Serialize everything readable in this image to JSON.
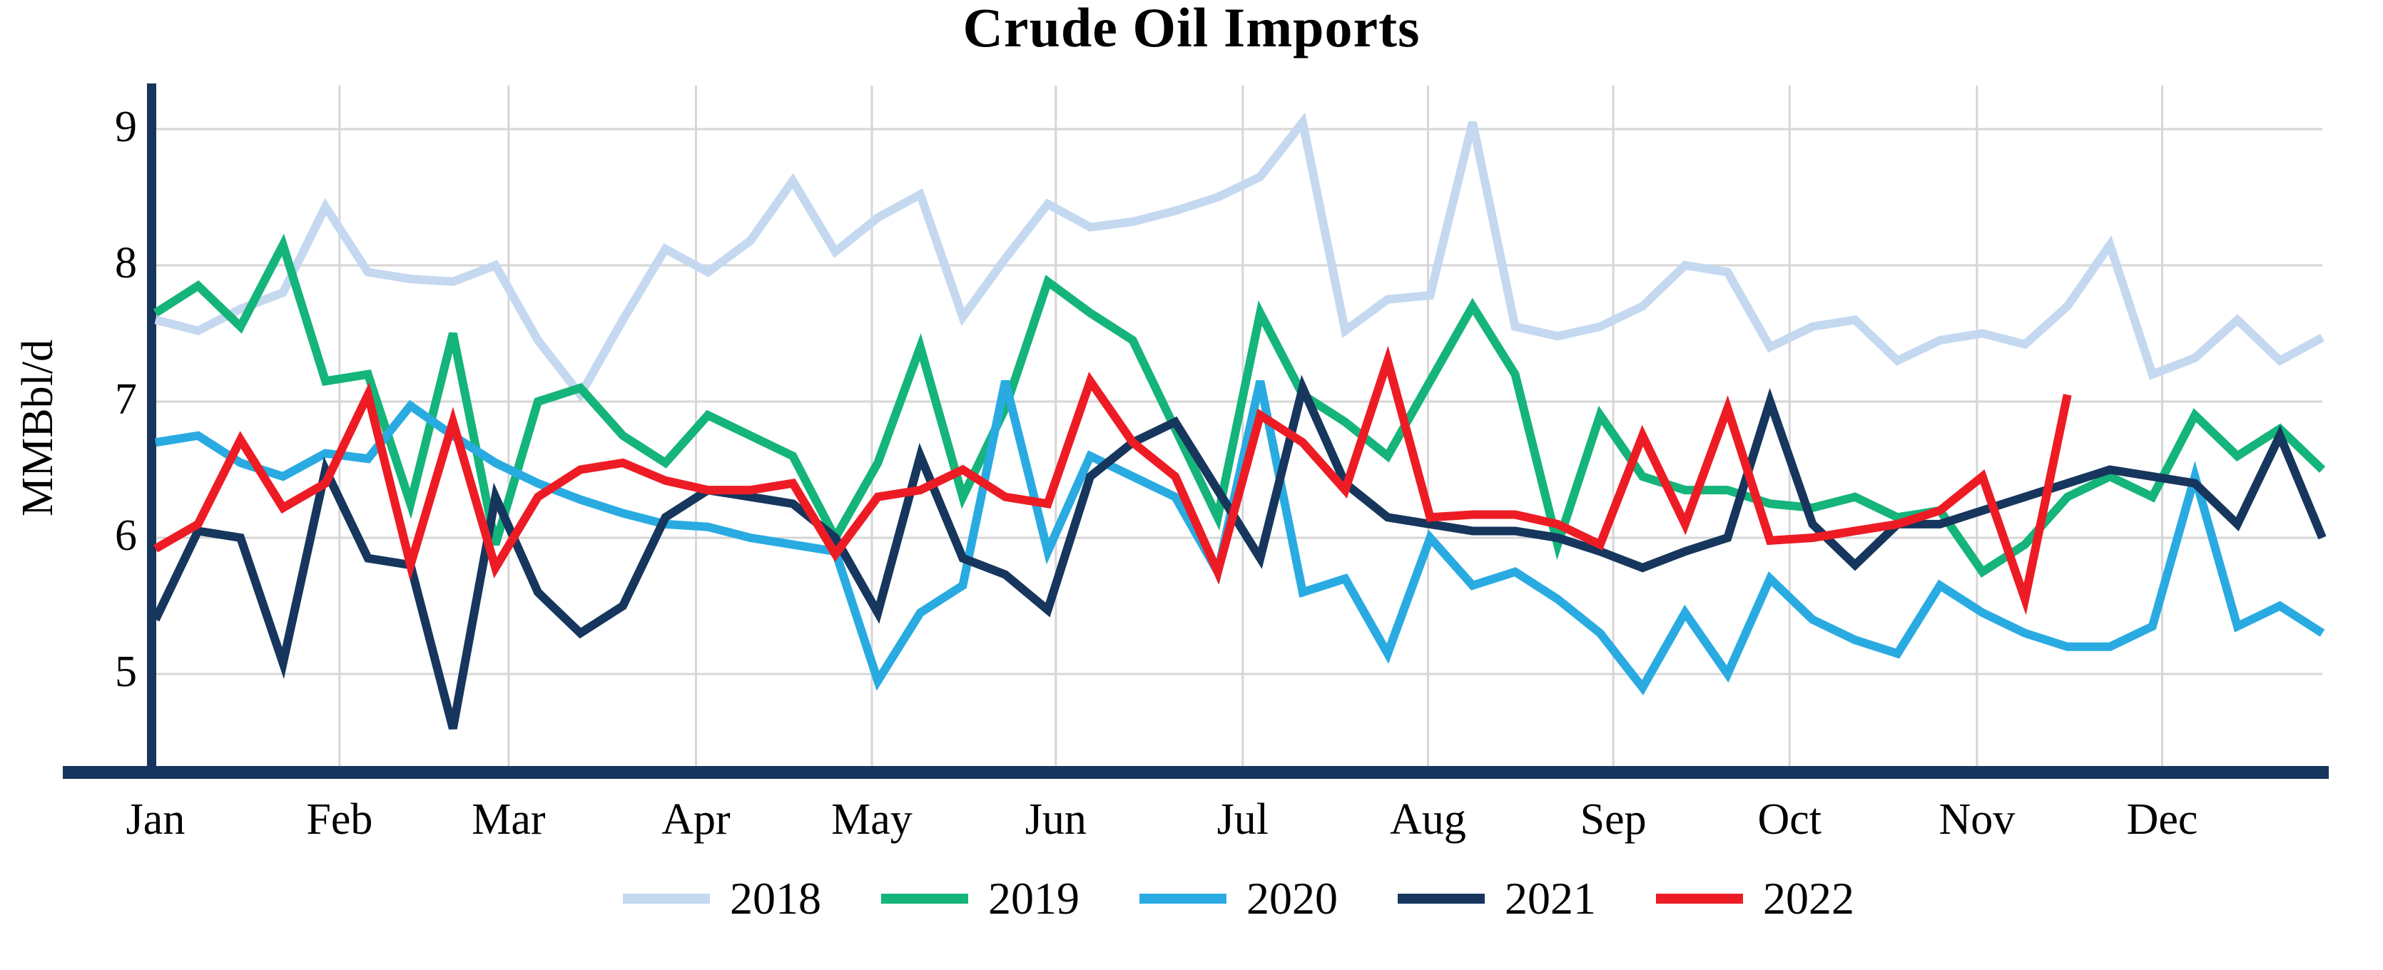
{
  "title": "Crude Oil Imports",
  "y_axis": {
    "label": "MMBbl/d",
    "ticks": [
      "9",
      "8",
      "7",
      "6",
      "5"
    ]
  },
  "x_axis": {
    "months": [
      "Jan",
      "Feb",
      "Mar",
      "Apr",
      "May",
      "Jun",
      "Jul",
      "Aug",
      "Sep",
      "Oct",
      "Nov",
      "Dec"
    ]
  },
  "legend_entries": [
    "2018",
    "2019",
    "2020",
    "2021",
    "2022"
  ],
  "colors": {
    "series_2018": "#c4d8f0",
    "series_2019": "#14b47a",
    "series_2020": "#29abe2",
    "series_2021": "#17365d",
    "series_2022": "#ed1c24",
    "axis_bar": "#17365d",
    "gridline": "#d6d6d6",
    "text": "#000000"
  },
  "chart_data": {
    "type": "line",
    "title": "Crude Oil Imports",
    "xlabel": "",
    "ylabel": "MMBbl/d",
    "x_unit": "week_of_year",
    "x_range_weeks": [
      0,
      51
    ],
    "ylim": [
      4.3,
      9.32
    ],
    "yticks": [
      5,
      6,
      7,
      8,
      9
    ],
    "grid": "both",
    "legend_position": "bottom",
    "month_labels": [
      "Jan",
      "Feb",
      "Mar",
      "Apr",
      "May",
      "Jun",
      "Jul",
      "Aug",
      "Sep",
      "Oct",
      "Nov",
      "Dec"
    ],
    "month_week_positions": [
      0,
      4.33,
      8.31,
      12.72,
      16.86,
      21.19,
      25.59,
      29.95,
      34.31,
      38.46,
      42.87,
      47.23
    ],
    "series": [
      {
        "name": "2018",
        "color": "#c4d8f0",
        "values": [
          7.6,
          7.52,
          7.68,
          7.8,
          8.43,
          7.95,
          7.9,
          7.88,
          8.0,
          7.45,
          7.05,
          7.6,
          8.12,
          7.95,
          8.18,
          8.62,
          8.1,
          8.35,
          8.52,
          7.62,
          8.05,
          8.45,
          8.28,
          8.32,
          8.4,
          8.5,
          8.65,
          9.05,
          7.52,
          7.75,
          7.78,
          9.05,
          7.55,
          7.48,
          7.55,
          7.7,
          8.0,
          7.95,
          7.4,
          7.55,
          7.6,
          7.3,
          7.45,
          7.5,
          7.42,
          7.7,
          8.15,
          7.2,
          7.32,
          7.6,
          7.3,
          7.47
        ]
      },
      {
        "name": "2019",
        "color": "#14b47a",
        "values": [
          7.65,
          7.85,
          7.55,
          8.15,
          7.15,
          7.2,
          6.25,
          7.5,
          5.95,
          7.0,
          7.1,
          6.75,
          6.55,
          6.9,
          6.75,
          6.6,
          6.0,
          6.55,
          7.4,
          6.3,
          6.95,
          7.88,
          7.65,
          7.45,
          6.8,
          6.15,
          7.65,
          7.05,
          6.85,
          6.6,
          7.15,
          7.7,
          7.2,
          5.95,
          6.9,
          6.45,
          6.35,
          6.35,
          6.25,
          6.22,
          6.3,
          6.15,
          6.2,
          5.75,
          5.95,
          6.3,
          6.45,
          6.3,
          6.9,
          6.6,
          6.8,
          6.5
        ]
      },
      {
        "name": "2020",
        "color": "#29abe2",
        "values": [
          6.7,
          6.75,
          6.55,
          6.45,
          6.62,
          6.58,
          6.97,
          6.75,
          6.55,
          6.4,
          6.28,
          6.18,
          6.1,
          6.08,
          6.0,
          5.95,
          5.9,
          4.95,
          5.45,
          5.65,
          7.15,
          5.9,
          6.6,
          6.45,
          6.3,
          5.75,
          7.15,
          5.6,
          5.7,
          5.15,
          6.0,
          5.65,
          5.75,
          5.55,
          5.3,
          4.9,
          5.45,
          5.0,
          5.7,
          5.4,
          5.25,
          5.15,
          5.65,
          5.45,
          5.3,
          5.2,
          5.2,
          5.35,
          6.45,
          5.35,
          5.5,
          5.3
        ]
      },
      {
        "name": "2021",
        "color": "#17365d",
        "values": [
          5.4,
          6.05,
          6.0,
          5.08,
          6.5,
          5.85,
          5.8,
          4.6,
          6.3,
          5.6,
          5.3,
          5.5,
          6.15,
          6.35,
          6.3,
          6.25,
          6.0,
          5.45,
          6.6,
          5.85,
          5.73,
          5.47,
          6.45,
          6.7,
          6.85,
          6.35,
          5.85,
          7.1,
          6.4,
          6.15,
          6.1,
          6.05,
          6.05,
          6.0,
          5.9,
          5.78,
          5.9,
          6.0,
          7.0,
          6.1,
          5.8,
          6.1,
          6.1,
          6.2,
          6.3,
          6.4,
          6.5,
          6.45,
          6.4,
          6.1,
          6.75,
          6.0
        ]
      },
      {
        "name": "2022",
        "color": "#ed1c24",
        "values": [
          5.92,
          6.1,
          6.72,
          6.22,
          6.4,
          7.05,
          5.8,
          6.85,
          5.78,
          6.3,
          6.5,
          6.55,
          6.42,
          6.35,
          6.35,
          6.4,
          5.88,
          6.3,
          6.35,
          6.5,
          6.3,
          6.25,
          7.15,
          6.7,
          6.45,
          5.75,
          6.9,
          6.7,
          6.35,
          7.3,
          6.15,
          6.17,
          6.17,
          6.1,
          5.95,
          6.75,
          6.1,
          6.95,
          5.98,
          6.0,
          6.05,
          6.1,
          6.2,
          6.45,
          5.55,
          7.05
        ]
      }
    ]
  }
}
